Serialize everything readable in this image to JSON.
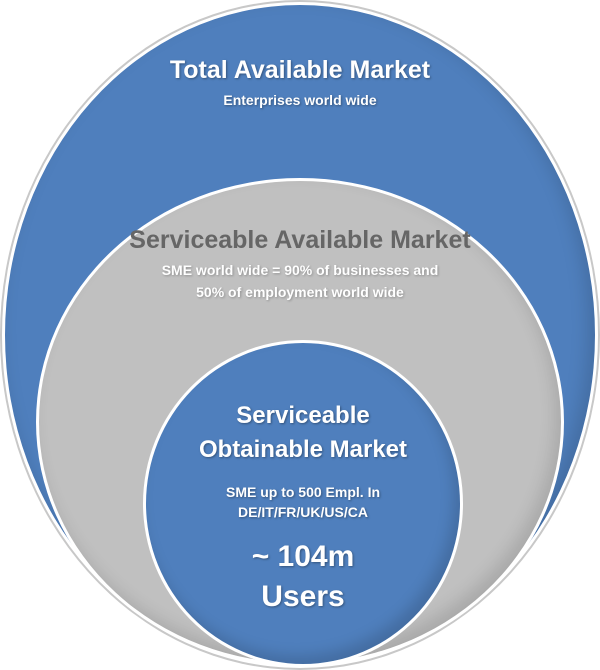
{
  "tam": {
    "title": "Total Available Market",
    "subtitle": "Enterprises world wide",
    "color": "#4f7fbd"
  },
  "sam": {
    "title": "Serviceable Available Market",
    "subtitle_line1": "SME world wide = 90% of businesses and",
    "subtitle_line2": "50% of employment world wide",
    "color": "#c0c0c0"
  },
  "som": {
    "title_line1": "Serviceable",
    "title_line2": "Obtainable Market",
    "subtitle_line1": "SME up to 500 Empl. In",
    "subtitle_line2": "DE/IT/FR/UK/US/CA",
    "value_line1": "~ 104m",
    "value_line2": "Users",
    "color": "#4f7fbd"
  }
}
